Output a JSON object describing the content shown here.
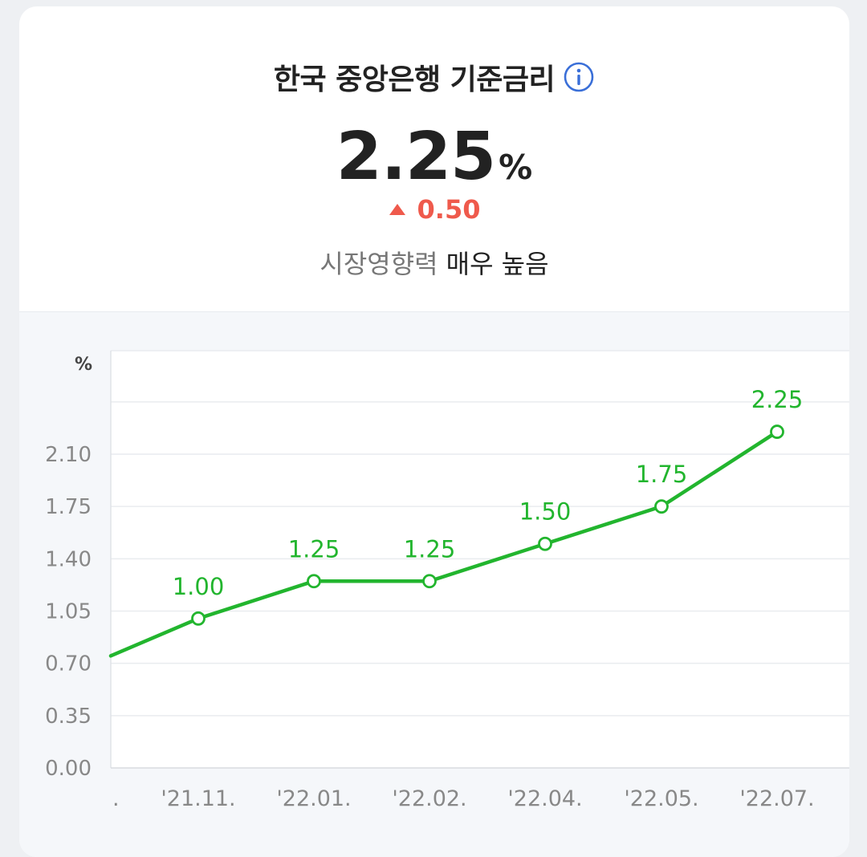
{
  "header": {
    "title": "한국 중앙은행 기준금리",
    "info_icon": "info-circle-icon",
    "value": "2.25",
    "unit": "%",
    "change_icon": "triangle-up-icon",
    "change": "0.50",
    "impact_label": "시장영향력",
    "impact_value": "매우 높음"
  },
  "colors": {
    "line": "#22b52e",
    "change_up": "#ef5a4c",
    "info": "#3a6fd8"
  },
  "chart_data": {
    "type": "line",
    "y_unit_label": "%",
    "ylim": [
      0,
      2.45
    ],
    "yticks": [
      "2.10",
      "1.75",
      "1.40",
      "1.05",
      "0.70",
      "0.35",
      "0.00"
    ],
    "ytick_values": [
      2.1,
      1.75,
      1.4,
      1.05,
      0.7,
      0.35,
      0.0
    ],
    "x_partial_label": ".",
    "categories": [
      "'21.11.",
      "'22.01.",
      "'22.02.",
      "'22.04.",
      "'22.05.",
      "'22.07."
    ],
    "values": [
      1.0,
      1.25,
      1.25,
      1.5,
      1.75,
      2.25
    ],
    "value_labels": [
      "1.00",
      "1.25",
      "1.25",
      "1.50",
      "1.75",
      "2.25"
    ],
    "left_partial_value": 0.75,
    "grid": true
  }
}
